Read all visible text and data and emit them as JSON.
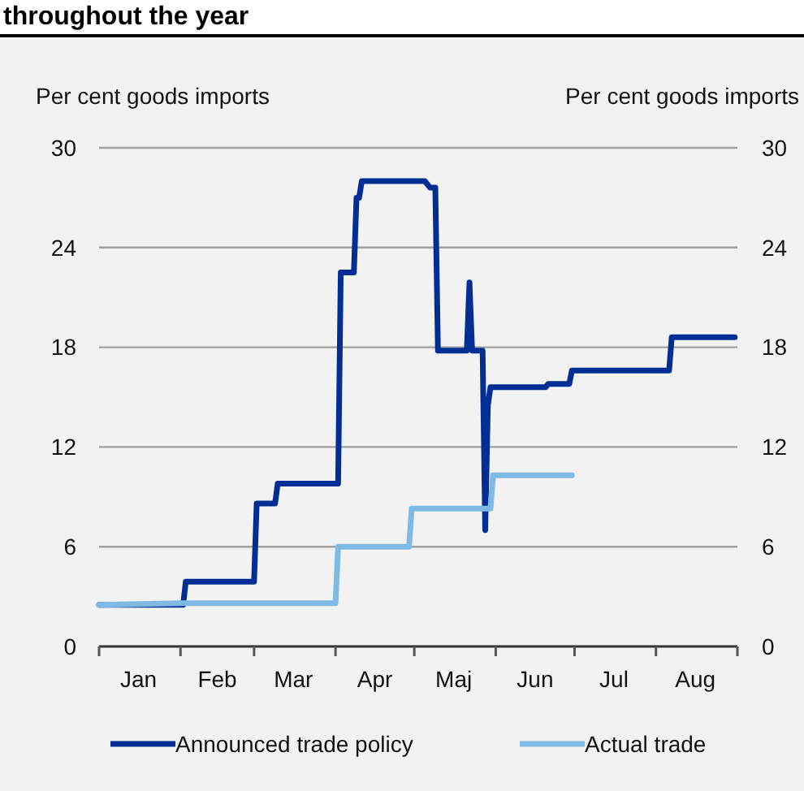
{
  "chart_data": {
    "type": "line",
    "title": "throughout the year",
    "ylabel": "Per cent goods imports",
    "y2label": "Per cent goods imports",
    "xlim": [
      "--01-01",
      "--09-01"
    ],
    "xticks": [
      {
        "value": "--01-01",
        "label": null
      },
      {
        "value": "--01-16",
        "label": "Jan"
      },
      {
        "value": "--02-01",
        "label": null
      },
      {
        "value": "--02-15",
        "label": "Feb"
      },
      {
        "value": "--03-01",
        "label": null
      },
      {
        "value": "--03-16",
        "label": "Mar"
      },
      {
        "value": "--04-01",
        "label": null
      },
      {
        "value": "--04-16",
        "label": "Apr"
      },
      {
        "value": "--05-01",
        "label": null
      },
      {
        "value": "--05-16",
        "label": "Maj"
      },
      {
        "value": "--06-01",
        "label": null
      },
      {
        "value": "--06-16",
        "label": "Jun"
      },
      {
        "value": "--07-01",
        "label": null
      },
      {
        "value": "--07-16",
        "label": "Jul"
      },
      {
        "value": "--08-01",
        "label": null
      },
      {
        "value": "--08-16",
        "label": "Aug"
      },
      {
        "value": "--09-01",
        "label": null
      }
    ],
    "ylim": [
      0,
      30
    ],
    "yticks": [
      0,
      6,
      12,
      18,
      24,
      30
    ],
    "y2lim": [
      0,
      30
    ],
    "y2ticks": [
      0,
      6,
      12,
      18,
      24,
      30
    ],
    "grid": "y",
    "legend": "bottom",
    "series": [
      {
        "name": "Announced trade policy",
        "color": "#002e94",
        "x": [
          "--01-01",
          "--02-02",
          "--02-03",
          "--03-01",
          "--03-02",
          "--03-09",
          "--03-10",
          "--04-02",
          "--04-03",
          "--04-08",
          "--04-09",
          "--04-10",
          "--04-11",
          "--05-05",
          "--05-07",
          "--05-09",
          "--05-10",
          "--05-21",
          "--05-22",
          "--05-23",
          "--05-26",
          "--05-27",
          "--05-28",
          "--05-29",
          "--05-30",
          "--06-20",
          "--06-21",
          "--06-29",
          "--06-30",
          "--08-06",
          "--08-07",
          "--08-31"
        ],
        "values": [
          2.5,
          2.5,
          3.9,
          3.9,
          8.6,
          8.6,
          9.8,
          9.8,
          22.5,
          22.5,
          27,
          27,
          28,
          28,
          27.6,
          27.6,
          17.8,
          17.8,
          21.9,
          17.8,
          17.8,
          17.8,
          7,
          14.5,
          15.6,
          15.6,
          15.8,
          15.8,
          16.6,
          16.6,
          18.6,
          18.6
        ]
      },
      {
        "name": "Actual trade",
        "color": "#7fbae5",
        "x": [
          "--01-01",
          "--02-01",
          "--04-01",
          "--04-02",
          "--04-29",
          "--04-30",
          "--05-30",
          "--05-31",
          "--06-30"
        ],
        "values": [
          2.5,
          2.6,
          2.6,
          6,
          6,
          8.3,
          8.3,
          10.3,
          10.3
        ]
      }
    ]
  }
}
